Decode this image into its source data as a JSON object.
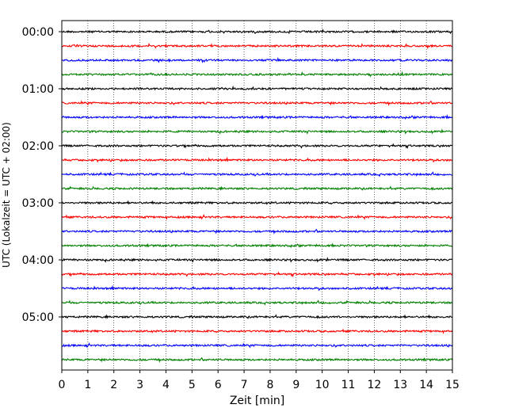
{
  "chart_data": {
    "type": "line",
    "title": "",
    "xlabel": "Zeit  [min]",
    "ylabel": "UTC (Lokalzeit = UTC + 02:00)",
    "xlim": [
      0,
      15
    ],
    "x_ticks": [
      0,
      1,
      2,
      3,
      4,
      5,
      6,
      7,
      8,
      9,
      10,
      11,
      12,
      13,
      14,
      15
    ],
    "grid": "vertical dotted",
    "legend": "none",
    "row_interval_minutes": 15,
    "y_ticks": [
      "00:00",
      "01:00",
      "02:00",
      "03:00",
      "04:00",
      "05:00"
    ],
    "color_cycle": [
      "#000000",
      "#ff0000",
      "#0000ff",
      "#008000"
    ],
    "series": [
      {
        "start": "00:00",
        "color": "#000000"
      },
      {
        "start": "00:15",
        "color": "#ff0000"
      },
      {
        "start": "00:30",
        "color": "#0000ff"
      },
      {
        "start": "00:45",
        "color": "#008000"
      },
      {
        "start": "01:00",
        "color": "#000000"
      },
      {
        "start": "01:15",
        "color": "#ff0000"
      },
      {
        "start": "01:30",
        "color": "#0000ff"
      },
      {
        "start": "01:45",
        "color": "#008000"
      },
      {
        "start": "02:00",
        "color": "#000000"
      },
      {
        "start": "02:15",
        "color": "#ff0000"
      },
      {
        "start": "02:30",
        "color": "#0000ff"
      },
      {
        "start": "02:45",
        "color": "#008000"
      },
      {
        "start": "03:00",
        "color": "#000000"
      },
      {
        "start": "03:15",
        "color": "#ff0000"
      },
      {
        "start": "03:30",
        "color": "#0000ff"
      },
      {
        "start": "03:45",
        "color": "#008000"
      },
      {
        "start": "04:00",
        "color": "#000000"
      },
      {
        "start": "04:15",
        "color": "#ff0000"
      },
      {
        "start": "04:30",
        "color": "#0000ff"
      },
      {
        "start": "04:45",
        "color": "#008000"
      },
      {
        "start": "05:00",
        "color": "#000000"
      },
      {
        "start": "05:15",
        "color": "#ff0000"
      },
      {
        "start": "05:30",
        "color": "#0000ff"
      },
      {
        "start": "05:45",
        "color": "#008000"
      }
    ]
  }
}
